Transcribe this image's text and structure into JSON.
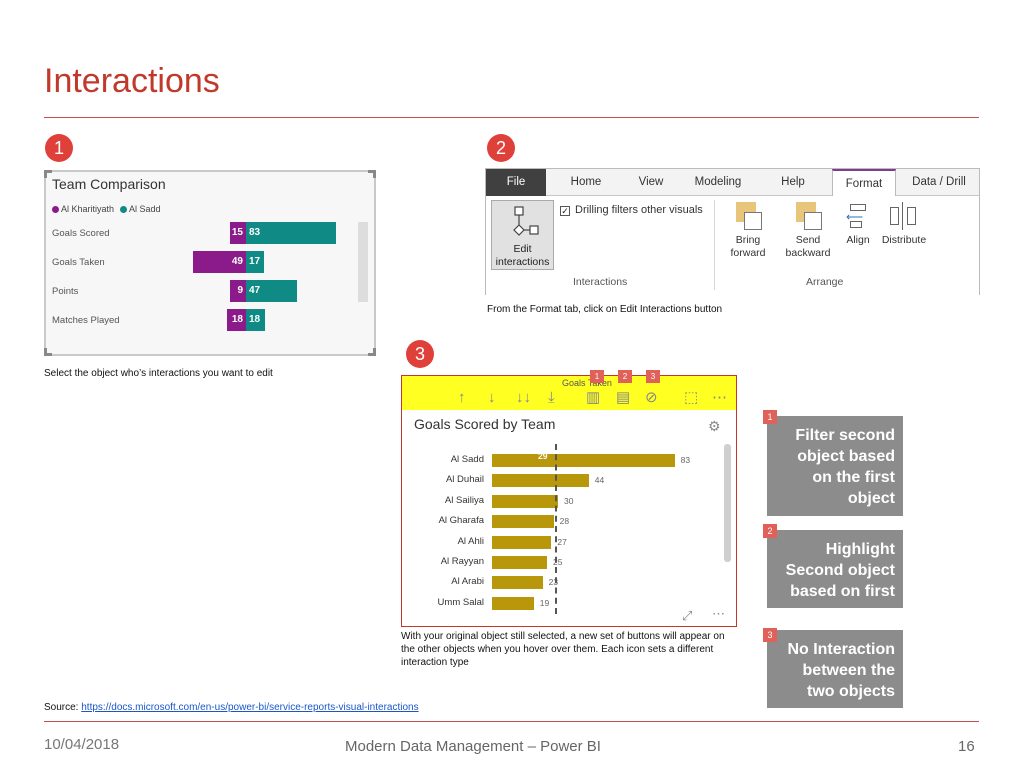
{
  "slide": {
    "title": "Interactions",
    "source_label": "Source: ",
    "source_link": "https://docs.microsoft.com/en-us/power-bi/service-reports-visual-interactions",
    "footer_date": "10/04/2018",
    "footer_title": "Modern Data Management – Power BI",
    "page_number": "16"
  },
  "steps": {
    "step1": "1",
    "step2": "2",
    "step3": "3"
  },
  "captions": {
    "caption1": "Select the object who’s interactions you want to edit",
    "caption2": "From the Format tab, click on Edit Interactions button",
    "caption3": "With your original object still selected, a new set of buttons will appear on the other objects when you hover over them. Each icon sets a different interaction type"
  },
  "team_comparison": {
    "title": "Team Comparison",
    "legend": [
      "Al Kharitiyath",
      "Al Sadd"
    ],
    "colors": {
      "left": "#8b1a8b",
      "right": "#0f8a85"
    },
    "rows": [
      {
        "label": "Goals Scored",
        "left": 15,
        "right": 83
      },
      {
        "label": "Goals Taken",
        "left": 49,
        "right": 17
      },
      {
        "label": "Points",
        "left": 9,
        "right": 47
      },
      {
        "label": "Matches Played",
        "left": 18,
        "right": 18
      }
    ]
  },
  "ribbon": {
    "tabs": [
      "File",
      "Home",
      "View",
      "Modeling",
      "Help",
      "Format",
      "Data / Drill"
    ],
    "active_tab": "Format",
    "edit_button_label": "Edit interactions",
    "checkbox_label": "Drilling filters other visuals",
    "group_interactions": "Interactions",
    "group_arrange": "Arrange",
    "arrange_buttons": [
      {
        "label": "Bring forward",
        "icon": "bring-forward-icon"
      },
      {
        "label": "Send backward",
        "icon": "send-backward-icon"
      },
      {
        "label": "Align",
        "icon": "align-icon"
      },
      {
        "label": "Distribute",
        "icon": "distribute-icon"
      }
    ]
  },
  "goals_scored": {
    "header_title": "Goals Taken",
    "mini_tags": [
      "1",
      "2",
      "3"
    ],
    "title": "Goals Scored by Team",
    "dashed_value": "29",
    "rows": [
      {
        "label": "Al Sadd",
        "value": 83
      },
      {
        "label": "Al Duhail",
        "value": 44
      },
      {
        "label": "Al Sailiya",
        "value": 30
      },
      {
        "label": "Al Gharafa",
        "value": 28
      },
      {
        "label": "Al Ahli",
        "value": 27
      },
      {
        "label": "Al Rayyan",
        "value": 25
      },
      {
        "label": "Al Arabi",
        "value": 23
      },
      {
        "label": "Umm Salal",
        "value": 19
      }
    ],
    "bar_color": "#b8980a"
  },
  "interaction_types": [
    {
      "tag": "1",
      "text": "Filter second object based on the first object"
    },
    {
      "tag": "2",
      "text": "Highlight Second object based on first"
    },
    {
      "tag": "3",
      "text": "No Interaction between the two objects"
    }
  ]
}
